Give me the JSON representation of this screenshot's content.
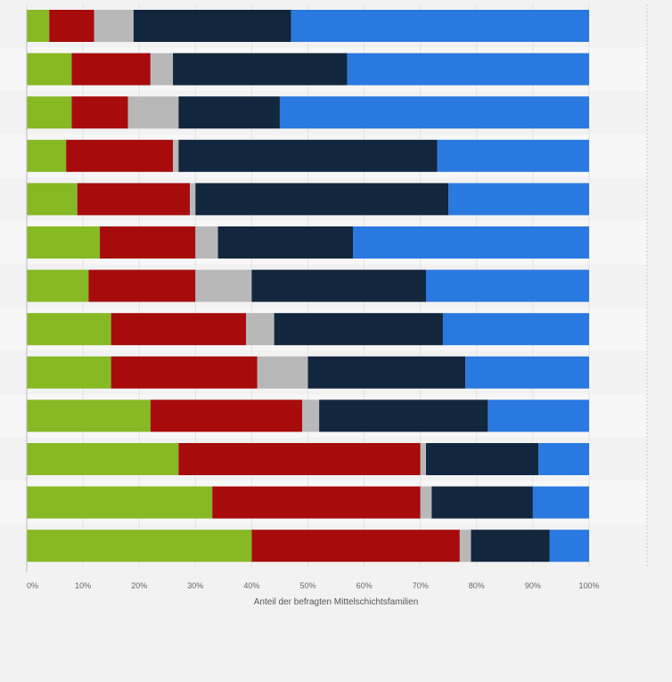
{
  "chart_data": {
    "type": "bar",
    "orientation": "horizontal",
    "stacked": true,
    "categories": [
      "",
      "",
      "",
      "",
      "",
      "",
      "",
      "",
      "",
      "",
      "",
      "",
      ""
    ],
    "series": [
      {
        "color": "#86b924",
        "values": [
          4,
          8,
          8,
          7,
          9,
          13,
          11,
          15,
          15,
          22,
          27,
          33,
          40
        ]
      },
      {
        "color": "#a70b0c",
        "values": [
          8,
          14,
          10,
          19,
          20,
          17,
          19,
          24,
          26,
          27,
          43,
          37,
          37
        ]
      },
      {
        "color": "#b8b8b8",
        "values": [
          7,
          4,
          9,
          1,
          1,
          4,
          10,
          5,
          9,
          3,
          1,
          2,
          2
        ]
      },
      {
        "color": "#12263e",
        "values": [
          28,
          31,
          18,
          46,
          45,
          24,
          31,
          30,
          28,
          30,
          20,
          18,
          14
        ]
      },
      {
        "color": "#2a79e0",
        "values": [
          53,
          43,
          55,
          27,
          25,
          42,
          29,
          26,
          22,
          18,
          9,
          10,
          7
        ]
      }
    ],
    "x_ticks": [
      "0%",
      "10%",
      "20%",
      "30%",
      "40%",
      "50%",
      "60%",
      "70%",
      "80%",
      "90%",
      "100%"
    ],
    "xlim": [
      0,
      100
    ],
    "xlabel": "Anteil der befragten Mittelschichtsfamilien",
    "ylabel": "",
    "grid": true,
    "legend": "none"
  }
}
